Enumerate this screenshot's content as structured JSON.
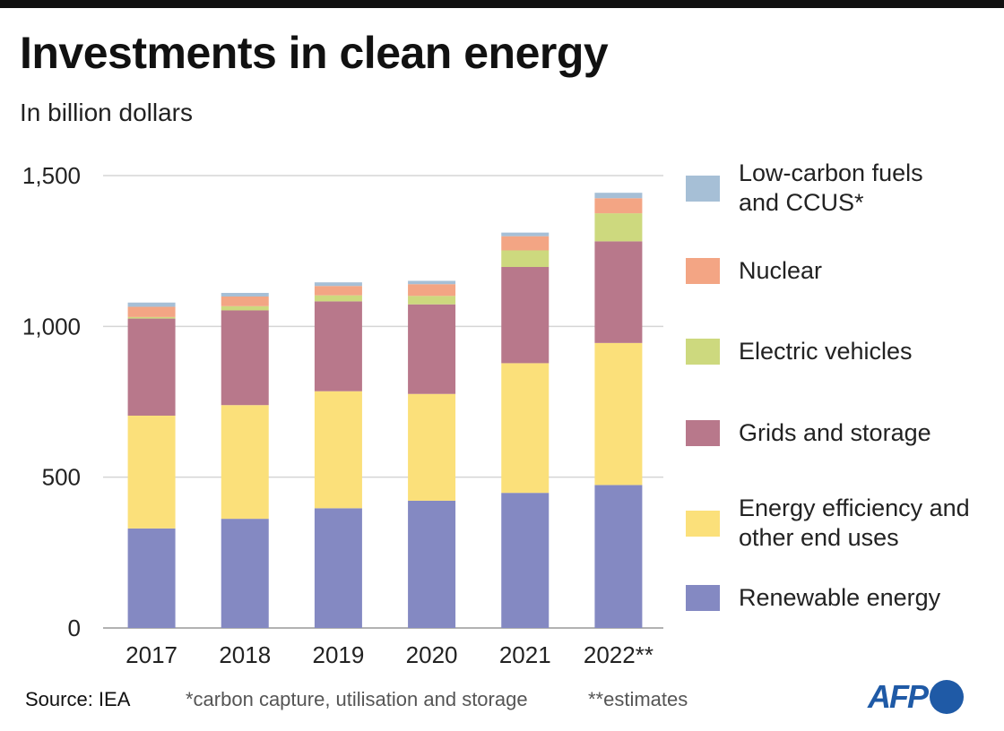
{
  "title": "Investments in clean energy",
  "subtitle": "In billion dollars",
  "footer": {
    "source": "Source: IEA",
    "note1": "*carbon capture, utilisation and storage",
    "note2": "**estimates",
    "logo": "AFP"
  },
  "chart_data": {
    "type": "bar",
    "stacked": true,
    "title": "Investments in clean energy",
    "subtitle": "In billion dollars",
    "xlabel": "",
    "ylabel": "",
    "ylim": [
      0,
      1500
    ],
    "yticks": [
      0,
      500,
      1000,
      1500
    ],
    "ytick_labels": [
      "0",
      "500",
      "1,000",
      "1,500"
    ],
    "grid": true,
    "legend_position": "right",
    "categories": [
      "2017",
      "2018",
      "2019",
      "2020",
      "2021",
      "2022**"
    ],
    "series": [
      {
        "name": "Renewable energy",
        "color": "#8489c2",
        "values": [
          330,
          362,
          397,
          422,
          448,
          474
        ]
      },
      {
        "name": "Energy efficiency and other end uses",
        "color": "#fbe07a",
        "values": [
          374,
          377,
          388,
          354,
          430,
          471
        ]
      },
      {
        "name": "Grids and storage",
        "color": "#b8788b",
        "values": [
          322,
          314,
          298,
          297,
          319,
          337
        ]
      },
      {
        "name": "Electric vehicles",
        "color": "#cdd97e",
        "values": [
          5,
          14,
          20,
          28,
          55,
          93
        ]
      },
      {
        "name": "Nuclear",
        "color": "#f3a584",
        "values": [
          34,
          32,
          31,
          39,
          47,
          50
        ]
      },
      {
        "name": "Low-carbon fuels and CCUS*",
        "color": "#a6bfd6",
        "values": [
          14,
          12,
          12,
          11,
          12,
          18
        ]
      }
    ],
    "legend_lines": [
      [
        "Low-carbon fuels",
        "and CCUS*"
      ],
      [
        "Nuclear"
      ],
      [
        "Electric vehicles"
      ],
      [
        "Grids and storage"
      ],
      [
        "Energy efficiency and",
        "other end uses"
      ],
      [
        "Renewable energy"
      ]
    ]
  }
}
